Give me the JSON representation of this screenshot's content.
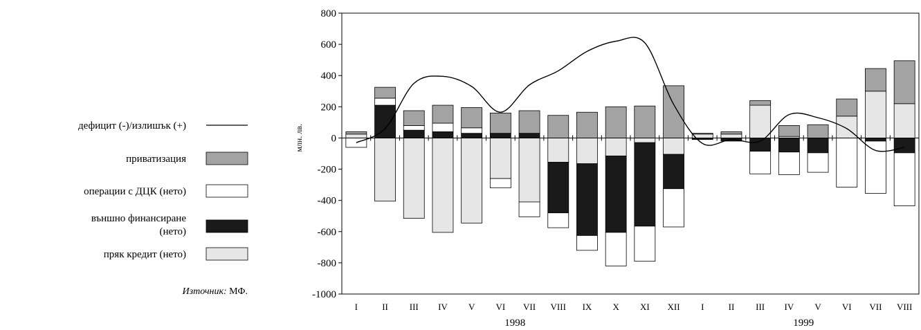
{
  "chart_data": {
    "type": "bar",
    "ylabel": "млн. лв.",
    "ylim": [
      -1000,
      800
    ],
    "yticks": [
      800,
      600,
      400,
      200,
      0,
      -200,
      -400,
      -600,
      -800,
      -1000
    ],
    "categories": [
      "I",
      "II",
      "III",
      "IV",
      "V",
      "VI",
      "VII",
      "VIII",
      "IX",
      "X",
      "XI",
      "XII",
      "I",
      "II",
      "III",
      "IV",
      "V",
      "VI",
      "VII",
      "VIII"
    ],
    "years": [
      {
        "label": "1998",
        "from": 0,
        "to": 11
      },
      {
        "label": "1999",
        "from": 12,
        "to": 19
      }
    ],
    "series": [
      {
        "name": "приватизация",
        "type": "bar",
        "color": "#a3a3a3",
        "values": [
          15,
          70,
          95,
          115,
          130,
          130,
          145,
          145,
          165,
          200,
          205,
          335,
          5,
          15,
          30,
          70,
          85,
          110,
          145,
          275
        ]
      },
      {
        "name": "операции с ДЦК (нето)",
        "type": "bar",
        "color": "#ffffff",
        "values": [
          -60,
          45,
          30,
          55,
          35,
          -60,
          -95,
          -95,
          -95,
          -215,
          -225,
          -245,
          0,
          0,
          -145,
          -145,
          -125,
          -315,
          -335,
          -340
        ]
      },
      {
        "name": "външно финансиране (нето)",
        "type": "bar",
        "color": "#1a1a1a",
        "values": [
          0,
          210,
          50,
          40,
          30,
          30,
          30,
          -325,
          -460,
          -490,
          -535,
          -220,
          -10,
          -20,
          -85,
          -90,
          -95,
          0,
          -20,
          -95
        ]
      },
      {
        "name": "пряк кредит (нето)",
        "type": "bar",
        "color": "#e6e6e6",
        "values": [
          25,
          -405,
          -515,
          -605,
          -545,
          -260,
          -410,
          -155,
          -165,
          -115,
          -30,
          -105,
          25,
          25,
          210,
          10,
          0,
          140,
          300,
          220
        ]
      },
      {
        "name": "дефицит (-)/излишък (+)",
        "type": "line",
        "color": "#000000",
        "values": [
          -30,
          60,
          350,
          395,
          330,
          165,
          340,
          430,
          555,
          620,
          610,
          215,
          -35,
          -10,
          -20,
          150,
          130,
          60,
          -80,
          -60
        ]
      }
    ],
    "legend_position": "left",
    "grid": false
  },
  "legend": [
    {
      "label": "дефицит (-)/излишък (+)",
      "swatch": "line",
      "color": "#000000"
    },
    {
      "label": "приватизация",
      "swatch": "box",
      "color": "#a3a3a3"
    },
    {
      "label": "операции с ДЦК (нето)",
      "swatch": "box",
      "color": "#ffffff"
    },
    {
      "label": "външно финансиране (нето)",
      "swatch": "box",
      "color": "#1a1a1a"
    },
    {
      "label": "пряк кредит (нето)",
      "swatch": "box",
      "color": "#e6e6e6"
    }
  ],
  "source": {
    "prefix": "Източник:",
    "text": " МФ."
  }
}
